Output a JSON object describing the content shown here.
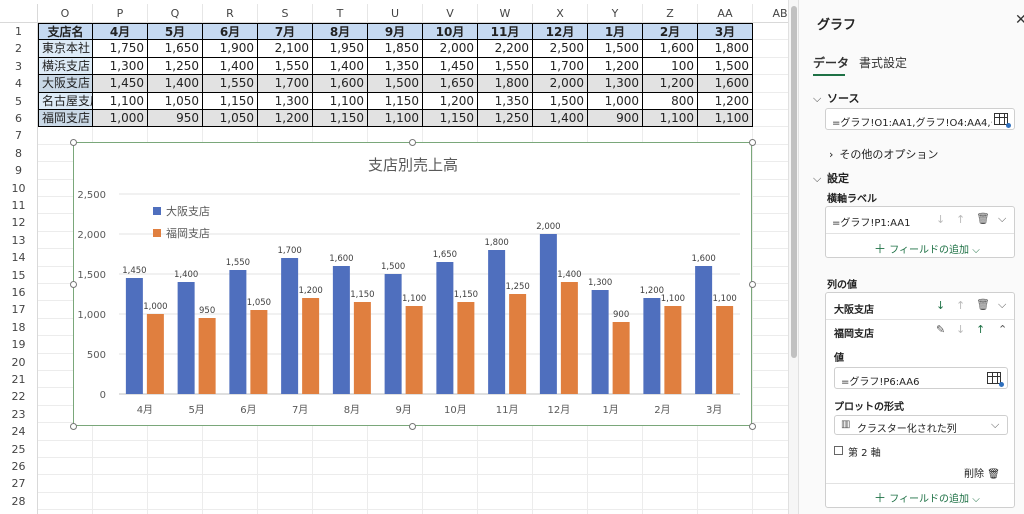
{
  "sheet": {
    "columns": [
      "O",
      "P",
      "Q",
      "R",
      "S",
      "T",
      "U",
      "V",
      "W",
      "X",
      "Y",
      "Z",
      "AA",
      "AB"
    ],
    "rows": [
      "1",
      "2",
      "3",
      "4",
      "5",
      "6",
      "7",
      "8",
      "9",
      "10",
      "11",
      "12",
      "13",
      "14",
      "15",
      "16",
      "17",
      "18",
      "19",
      "20",
      "21",
      "22",
      "23",
      "24",
      "25",
      "26",
      "27",
      "28",
      "29"
    ],
    "table": {
      "header": [
        "支店名",
        "4月",
        "5月",
        "6月",
        "7月",
        "8月",
        "9月",
        "10月",
        "11月",
        "12月",
        "1月",
        "2月",
        "3月"
      ],
      "rows": [
        [
          "東京本社",
          "1,750",
          "1,650",
          "1,900",
          "2,100",
          "1,950",
          "1,850",
          "2,000",
          "2,200",
          "2,500",
          "1,500",
          "1,600",
          "1,800"
        ],
        [
          "横浜支店",
          "1,300",
          "1,250",
          "1,400",
          "1,550",
          "1,400",
          "1,350",
          "1,450",
          "1,550",
          "1,700",
          "1,200",
          "100",
          "1,500"
        ],
        [
          "大阪支店",
          "1,450",
          "1,400",
          "1,550",
          "1,700",
          "1,600",
          "1,500",
          "1,650",
          "1,800",
          "2,000",
          "1,300",
          "1,200",
          "1,600"
        ],
        [
          "名古屋支店",
          "1,100",
          "1,050",
          "1,150",
          "1,300",
          "1,100",
          "1,150",
          "1,200",
          "1,350",
          "1,500",
          "1,000",
          "800",
          "1,200"
        ],
        [
          "福岡支店",
          "1,000",
          "950",
          "1,050",
          "1,200",
          "1,150",
          "1,100",
          "1,150",
          "1,250",
          "1,400",
          "900",
          "1,100",
          "1,100"
        ]
      ]
    }
  },
  "chart_data": {
    "type": "bar",
    "title": "支店別売上高",
    "categories": [
      "4月",
      "5月",
      "6月",
      "7月",
      "8月",
      "9月",
      "10月",
      "11月",
      "12月",
      "1月",
      "2月",
      "3月"
    ],
    "series": [
      {
        "name": "大阪支店",
        "values": [
          1450,
          1400,
          1550,
          1700,
          1600,
          1500,
          1650,
          1800,
          2000,
          1300,
          1200,
          1600
        ],
        "color": "#4f6fbe"
      },
      {
        "name": "福岡支店",
        "values": [
          1000,
          950,
          1050,
          1200,
          1150,
          1100,
          1150,
          1250,
          1400,
          900,
          1100,
          1100
        ],
        "color": "#e07f3f"
      }
    ],
    "ylim": [
      0,
      2500
    ],
    "yticks": [
      "0",
      "500",
      "1,000",
      "1,500",
      "2,000",
      "2,500"
    ],
    "data_labels": {
      "大阪支店": [
        "1,450",
        "1,400",
        "1,550",
        "1,700",
        "1,600",
        "1,500",
        "1,650",
        "1,800",
        "2,000",
        "1,300",
        "1,200",
        "1,600"
      ],
      "福岡支店": [
        "1,000",
        "950",
        "1,050",
        "1,200",
        "1,150",
        "1,100",
        "1,150",
        "1,250",
        "1,400",
        "900",
        "1,100",
        "1,100"
      ]
    },
    "legend_position": "top-left",
    "grid": true
  },
  "panel": {
    "title": "グラフ",
    "close_icon": "close-icon",
    "tabs": {
      "data": "データ",
      "format": "書式設定"
    },
    "source": {
      "heading": "ソース",
      "value": "=グラフ!O1:AA1,グラフ!O4:AA4,グラ…",
      "more_options": "その他のオプション"
    },
    "settings": {
      "heading": "設定",
      "axis_label_heading": "横軸ラベル",
      "axis_label_value": "=グラフ!P1:AA1",
      "add_field": "フィールドの追加",
      "series_heading": "列の値",
      "series1_name": "大阪支店",
      "series2_name": "福岡支店",
      "value_label": "値",
      "value_input": "=グラフ!P6:AA6",
      "plot_format_label": "プロットの形式",
      "plot_format_value": "クラスター化された列",
      "secondary_axis": "第 2 軸",
      "delete_label": "削除",
      "add_field_bottom": "フィールドの追加"
    }
  }
}
